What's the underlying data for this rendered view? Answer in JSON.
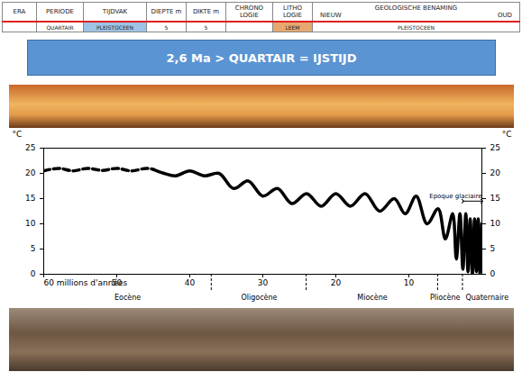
{
  "header": {
    "columns": [
      "ERA",
      "PERIODE",
      "TIJDVAK",
      "DIEPTE m",
      "DIKTE m",
      "CHRONO LOGIE",
      "LITHO LOGIE",
      {
        "label": "GEOLOGISCHE BENAMING",
        "sub": [
          "NIEUW",
          "OUD"
        ]
      }
    ],
    "row": [
      null,
      "QUARTAIR",
      "PLEISTOCEEN",
      "5",
      "5",
      null,
      "LEEM",
      "PLEISTOCEEN"
    ]
  },
  "banner": "2,6 Ma > QUARTAIR = IJSTIJD",
  "chart_data": {
    "type": "line",
    "xlim": [
      60,
      0
    ],
    "xticks": [
      {
        "value": 60,
        "label": "60 millions d'années"
      },
      50,
      40,
      30,
      20,
      10
    ],
    "ylim": [
      0,
      25
    ],
    "yticks": [
      0,
      5,
      10,
      15,
      20,
      25
    ],
    "ylabel": "°C",
    "series": [
      {
        "color": "#000000",
        "line_style": "dashed",
        "x": [
          60,
          58,
          56,
          54,
          52,
          50,
          48,
          46,
          45
        ],
        "values": [
          20.5,
          21,
          20.5,
          21,
          20.6,
          21,
          20.5,
          21,
          20.8
        ]
      },
      {
        "color": "#000000",
        "line_style": "solid",
        "x": [
          45,
          43.5,
          42,
          40,
          38,
          36,
          34,
          32,
          30,
          28,
          26,
          24,
          22,
          20,
          18,
          16,
          14,
          12,
          10.5,
          9,
          7.5,
          6,
          5,
          4,
          3.5,
          3,
          2.6,
          2.2,
          1.9,
          1.6,
          1.3,
          1,
          0.75,
          0.5,
          0.25,
          0
        ],
        "values": [
          20.8,
          20,
          19.5,
          20.5,
          19.5,
          20,
          17,
          18.5,
          15.5,
          17,
          14,
          16,
          13.5,
          16,
          13.5,
          16,
          12.5,
          15,
          12,
          15.5,
          10,
          13,
          7,
          12,
          3,
          12,
          1,
          12,
          0.5,
          11,
          0,
          11,
          0.5,
          11,
          0,
          10
        ]
      }
    ],
    "epochs": [
      {
        "label": "Eocène",
        "from": 60,
        "to": 37
      },
      {
        "label": "Oligocène",
        "from": 37,
        "to": 24
      },
      {
        "label": "Miocène",
        "from": 24,
        "to": 6
      },
      {
        "label": "Pliocène",
        "from": 6,
        "to": 2.6
      },
      {
        "label": "Quaternaire",
        "from": 2.6,
        "to": 0
      }
    ],
    "annotations": [
      {
        "text": "Epoque glaciaire",
        "from": 2.6,
        "to": 0,
        "y": 14.5
      }
    ]
  }
}
